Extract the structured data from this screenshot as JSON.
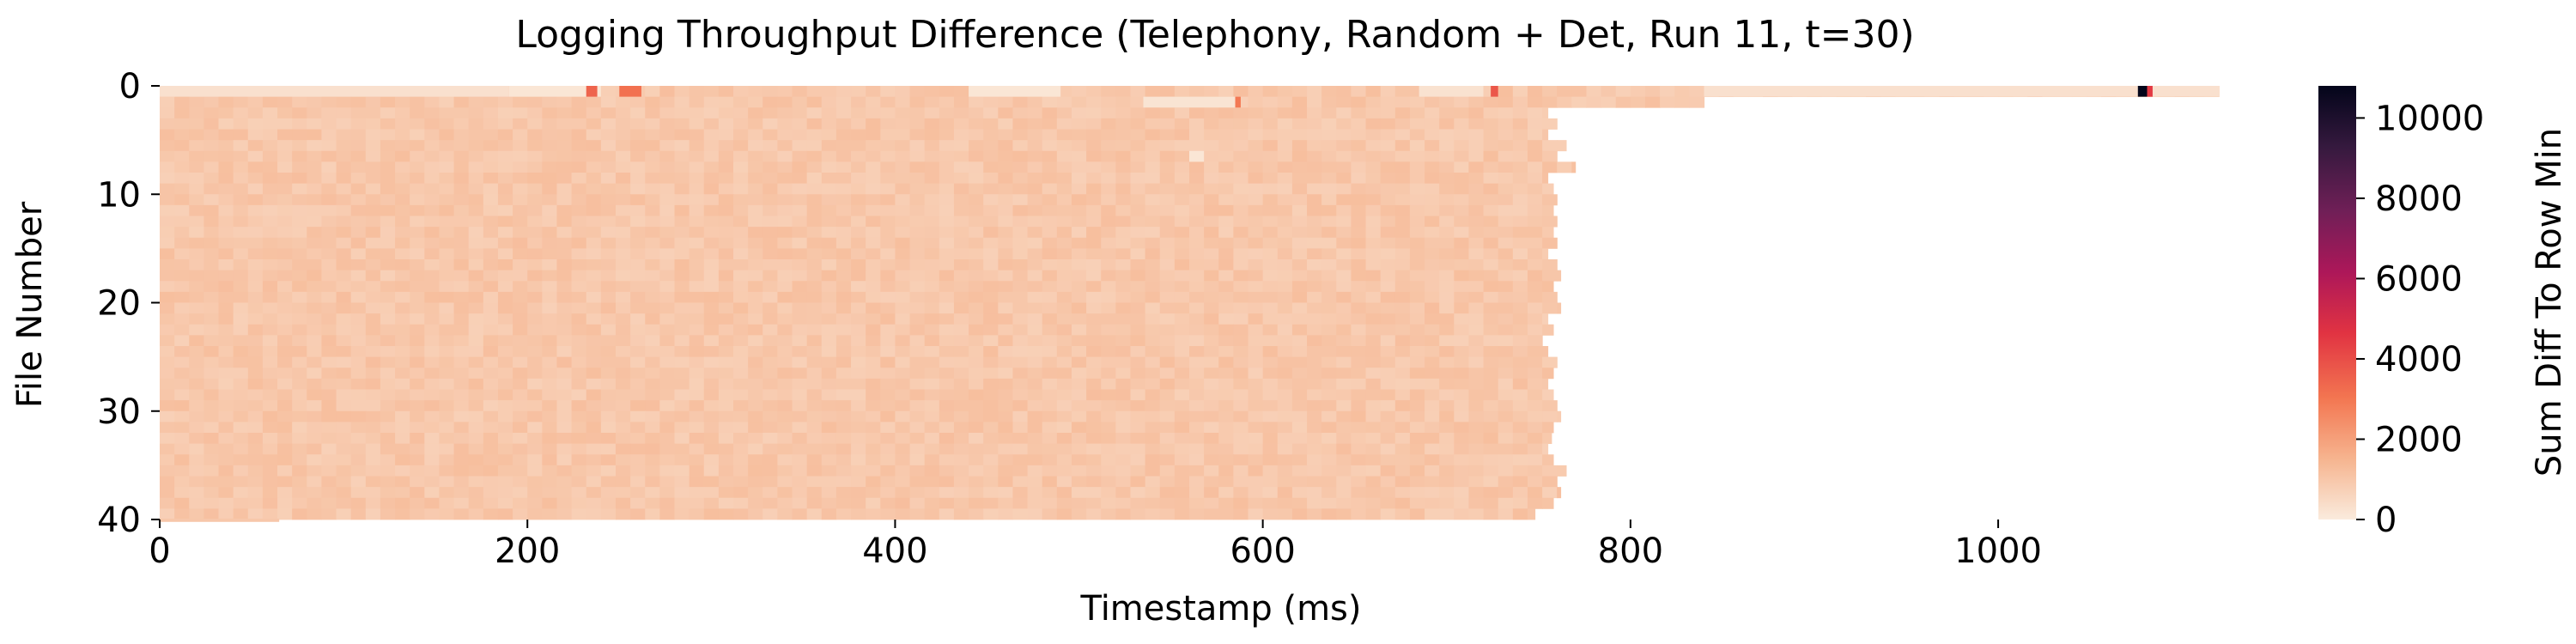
{
  "chart_data": {
    "type": "heatmap",
    "title": "Logging Throughput Difference (Telephony, Random + Det, Run 11, t=30)",
    "xlabel": "Timestamp (ms)",
    "ylabel": "File Number",
    "xlim": [
      0,
      1120
    ],
    "ylim": [
      40,
      0
    ],
    "x_ticks": [
      "0",
      "200",
      "400",
      "600",
      "800",
      "1000"
    ],
    "y_ticks": [
      "0",
      "10",
      "20",
      "30",
      "40"
    ],
    "colorbar": {
      "label": "Sum Diff To Row Min",
      "range": [
        0,
        10800
      ],
      "ticks": [
        "0",
        "2000",
        "4000",
        "6000",
        "8000",
        "10000"
      ],
      "colormap": "rocket_r",
      "stops": [
        "#faebdd",
        "#f6b48f",
        "#f37651",
        "#e13342",
        "#ad1759",
        "#701f57",
        "#35193e",
        "#03051a"
      ]
    },
    "typical_cell_value": 1000,
    "row_end_ms": [
      1120,
      840,
      755,
      760,
      755,
      765,
      760,
      770,
      755,
      758,
      760,
      758,
      760,
      758,
      760,
      755,
      760,
      762,
      758,
      760,
      762,
      755,
      758,
      752,
      755,
      760,
      758,
      755,
      758,
      760,
      762,
      758,
      757,
      755,
      758,
      765,
      760,
      762,
      758,
      748
    ],
    "last_row_tail": {
      "row": 39,
      "end_ms": 65
    },
    "highlights": [
      {
        "row": 0,
        "x_start": 232,
        "x_end": 238,
        "value": 3500
      },
      {
        "row": 0,
        "x_start": 250,
        "x_end": 262,
        "value": 3200
      },
      {
        "row": 0,
        "x_start": 724,
        "x_end": 728,
        "value": 3800
      },
      {
        "row": 0,
        "x_start": 1076,
        "x_end": 1081,
        "value": 10800
      },
      {
        "row": 0,
        "x_start": 1081,
        "x_end": 1084,
        "value": 4500
      },
      {
        "row": 1,
        "x_start": 585,
        "x_end": 588,
        "value": 3000
      }
    ],
    "pale_segments": [
      {
        "row": 0,
        "x_start": 0,
        "x_end": 190,
        "value": 300
      },
      {
        "row": 0,
        "x_start": 190,
        "x_end": 240,
        "value": 150
      },
      {
        "row": 0,
        "x_start": 440,
        "x_end": 490,
        "value": 150
      },
      {
        "row": 0,
        "x_start": 685,
        "x_end": 720,
        "value": 250
      },
      {
        "row": 0,
        "x_start": 840,
        "x_end": 1120,
        "value": 300
      },
      {
        "row": 1,
        "x_start": 535,
        "x_end": 585,
        "value": 200
      },
      {
        "row": 6,
        "x_start": 560,
        "x_end": 568,
        "value": 150
      }
    ]
  }
}
